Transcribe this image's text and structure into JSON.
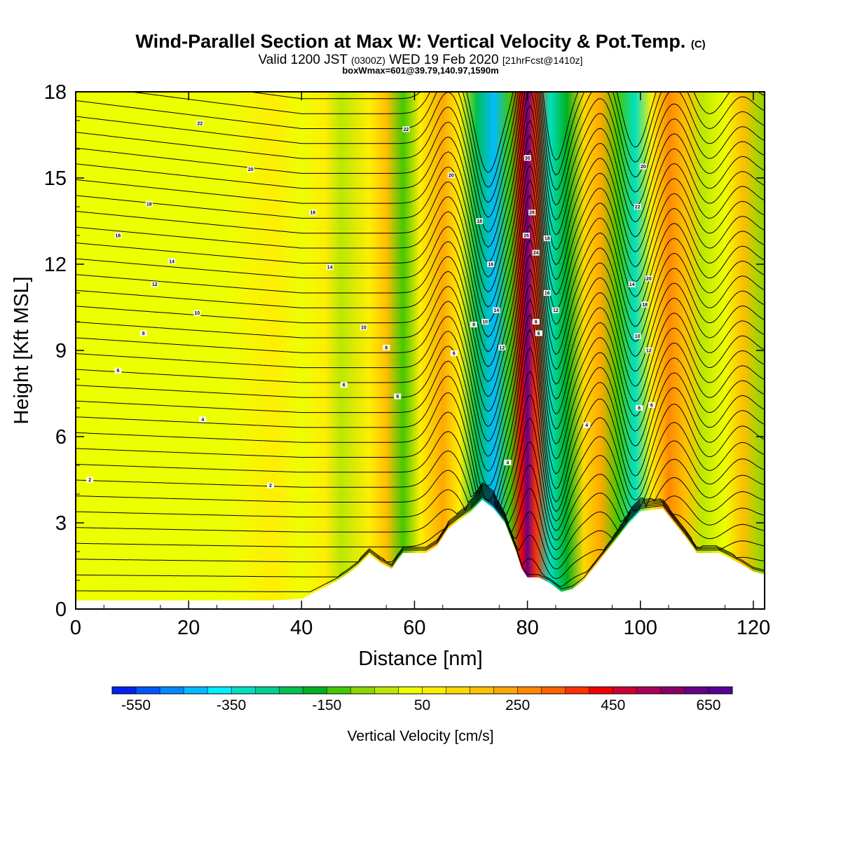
{
  "header": {
    "title_main": "Wind-Parallel Section at Max W: Vertical Velocity & Pot.Temp.",
    "title_mark": "(C)",
    "valid_a": "Valid 1200 JST",
    "valid_b": "(0300Z)",
    "valid_c": "WED 19 Feb 2020",
    "valid_d": "[21hrFcst@1410z]",
    "box": "boxWmax=601@39.79,140.97,1590m"
  },
  "chart_data": {
    "type": "heatmap",
    "xlabel": "Distance [nm]",
    "ylabel": "Height [Kft MSL]",
    "xlim": [
      0,
      122
    ],
    "ylim": [
      0,
      18
    ],
    "x_ticks": [
      0,
      20,
      40,
      60,
      80,
      100,
      120
    ],
    "y_ticks": [
      0,
      3,
      6,
      9,
      12,
      15,
      18
    ],
    "colorbar": {
      "title": "Vertical Velocity [cm/s]",
      "labels": [
        "-550",
        "-350",
        "-150",
        "50",
        "250",
        "450",
        "650"
      ],
      "label_values": [
        -550,
        -350,
        -150,
        50,
        250,
        450,
        650
      ],
      "range": [
        -600,
        700
      ],
      "step": 50,
      "colors": [
        "#0022ee",
        "#0055ff",
        "#0088ff",
        "#00bbff",
        "#00eeff",
        "#00e0c0",
        "#00d090",
        "#00c050",
        "#00b020",
        "#44c800",
        "#88d800",
        "#bbe800",
        "#eeff00",
        "#ffee00",
        "#ffd800",
        "#ffc000",
        "#ffa800",
        "#ff8800",
        "#ff6000",
        "#ff3000",
        "#ee0000",
        "#cc0033",
        "#aa0055",
        "#880066",
        "#660088",
        "#550099"
      ]
    },
    "velocity_columns": [
      {
        "x": 0,
        "w": 10
      },
      {
        "x": 27,
        "w": 10
      },
      {
        "x": 35,
        "w": 60
      },
      {
        "x": 40,
        "w": 30
      },
      {
        "x": 44,
        "w": 50
      },
      {
        "x": 47,
        "w": -40
      },
      {
        "x": 52,
        "w": 80
      },
      {
        "x": 55,
        "w": 180
      },
      {
        "x": 58,
        "w": -140
      },
      {
        "x": 61,
        "w": 60
      },
      {
        "x": 65,
        "w": 230
      },
      {
        "x": 68,
        "w": 80
      },
      {
        "x": 71,
        "w": -250
      },
      {
        "x": 74,
        "w": -450
      },
      {
        "x": 77,
        "w": -150
      },
      {
        "x": 79,
        "w": 430
      },
      {
        "x": 80,
        "w": 620
      },
      {
        "x": 81.5,
        "w": 380
      },
      {
        "x": 84,
        "w": -330
      },
      {
        "x": 87,
        "w": -200
      },
      {
        "x": 90,
        "w": 120
      },
      {
        "x": 93,
        "w": 200
      },
      {
        "x": 96,
        "w": -120
      },
      {
        "x": 99,
        "w": -320
      },
      {
        "x": 102,
        "w": 50
      },
      {
        "x": 105,
        "w": 250
      },
      {
        "x": 108,
        "w": 180
      },
      {
        "x": 111,
        "w": -40
      },
      {
        "x": 115,
        "w": 20
      },
      {
        "x": 118,
        "w": 150
      },
      {
        "x": 122,
        "w": -80
      }
    ],
    "terrain_kft": [
      [
        0,
        0.3
      ],
      [
        35,
        0.3
      ],
      [
        40,
        0.35
      ],
      [
        42,
        0.55
      ],
      [
        44,
        0.75
      ],
      [
        46,
        0.95
      ],
      [
        48,
        1.2
      ],
      [
        50,
        1.5
      ],
      [
        52,
        1.9
      ],
      [
        54,
        1.6
      ],
      [
        56,
        1.4
      ],
      [
        57,
        1.7
      ],
      [
        58,
        1.95
      ],
      [
        60,
        1.95
      ],
      [
        62,
        1.95
      ],
      [
        64,
        2.2
      ],
      [
        66,
        2.8
      ],
      [
        68,
        3.1
      ],
      [
        70,
        3.4
      ],
      [
        72,
        3.8
      ],
      [
        74,
        3.5
      ],
      [
        76,
        3.0
      ],
      [
        78,
        2.0
      ],
      [
        79,
        1.4
      ],
      [
        80,
        1.1
      ],
      [
        82,
        1.1
      ],
      [
        84,
        0.9
      ],
      [
        86,
        0.6
      ],
      [
        88,
        0.7
      ],
      [
        90,
        1.0
      ],
      [
        92,
        1.5
      ],
      [
        94,
        2.0
      ],
      [
        96,
        2.5
      ],
      [
        98,
        3.0
      ],
      [
        100,
        3.4
      ],
      [
        104,
        3.5
      ],
      [
        106,
        3.0
      ],
      [
        108,
        2.5
      ],
      [
        110,
        1.95
      ],
      [
        112,
        1.95
      ],
      [
        114,
        1.95
      ],
      [
        116,
        1.75
      ],
      [
        118,
        1.55
      ],
      [
        120,
        1.3
      ],
      [
        122,
        1.2
      ]
    ],
    "contour_labels": [
      {
        "text": "22",
        "x": 22,
        "y": 16.9
      },
      {
        "text": "20",
        "x": 31,
        "y": 15.3
      },
      {
        "text": "18",
        "x": 13,
        "y": 14.1
      },
      {
        "text": "16",
        "x": 42,
        "y": 13.8
      },
      {
        "text": "16",
        "x": 7.5,
        "y": 13.0
      },
      {
        "text": "14",
        "x": 17,
        "y": 12.1
      },
      {
        "text": "14",
        "x": 45,
        "y": 11.9
      },
      {
        "text": "12",
        "x": 14,
        "y": 11.3
      },
      {
        "text": "10",
        "x": 21.5,
        "y": 10.3
      },
      {
        "text": "10",
        "x": 51,
        "y": 9.8
      },
      {
        "text": "8",
        "x": 12,
        "y": 9.6
      },
      {
        "text": "8",
        "x": 55,
        "y": 9.1
      },
      {
        "text": "6",
        "x": 7.5,
        "y": 8.3
      },
      {
        "text": "6",
        "x": 47.5,
        "y": 7.8
      },
      {
        "text": "6",
        "x": 57,
        "y": 7.4
      },
      {
        "text": "4",
        "x": 22.5,
        "y": 6.6
      },
      {
        "text": "2",
        "x": 2.5,
        "y": 4.5
      },
      {
        "text": "2",
        "x": 34.5,
        "y": 4.3
      },
      {
        "text": "22",
        "x": 58.5,
        "y": 16.7
      },
      {
        "text": "20",
        "x": 66.5,
        "y": 15.1
      },
      {
        "text": "18",
        "x": 71.5,
        "y": 13.5
      },
      {
        "text": "16",
        "x": 73.5,
        "y": 12.0
      },
      {
        "text": "14",
        "x": 74.5,
        "y": 10.4
      },
      {
        "text": "12",
        "x": 75.5,
        "y": 9.1
      },
      {
        "text": "10",
        "x": 72.5,
        "y": 10.0
      },
      {
        "text": "8",
        "x": 70.5,
        "y": 9.9
      },
      {
        "text": "6",
        "x": 67,
        "y": 8.9
      },
      {
        "text": "4",
        "x": 76.5,
        "y": 5.1
      },
      {
        "text": "30",
        "x": 80,
        "y": 15.7
      },
      {
        "text": "28",
        "x": 80.8,
        "y": 13.8
      },
      {
        "text": "26",
        "x": 79.8,
        "y": 13.0
      },
      {
        "text": "24",
        "x": 81.5,
        "y": 12.4
      },
      {
        "text": "18",
        "x": 83.5,
        "y": 12.9
      },
      {
        "text": "16",
        "x": 83.5,
        "y": 11.0
      },
      {
        "text": "12",
        "x": 85,
        "y": 10.4
      },
      {
        "text": "8",
        "x": 81.5,
        "y": 10.0
      },
      {
        "text": "6",
        "x": 82,
        "y": 9.6
      },
      {
        "text": "4",
        "x": 90.5,
        "y": 6.4
      },
      {
        "text": "20",
        "x": 100.5,
        "y": 15.4
      },
      {
        "text": "22",
        "x": 99.5,
        "y": 14.0
      },
      {
        "text": "20",
        "x": 101.5,
        "y": 11.5
      },
      {
        "text": "18",
        "x": 100.8,
        "y": 10.6
      },
      {
        "text": "14",
        "x": 98.5,
        "y": 11.3
      },
      {
        "text": "10",
        "x": 99.5,
        "y": 9.5
      },
      {
        "text": "12",
        "x": 101.5,
        "y": 9.0
      },
      {
        "text": "8",
        "x": 99.8,
        "y": 7.0
      },
      {
        "text": "6",
        "x": 102,
        "y": 7.1
      }
    ]
  }
}
